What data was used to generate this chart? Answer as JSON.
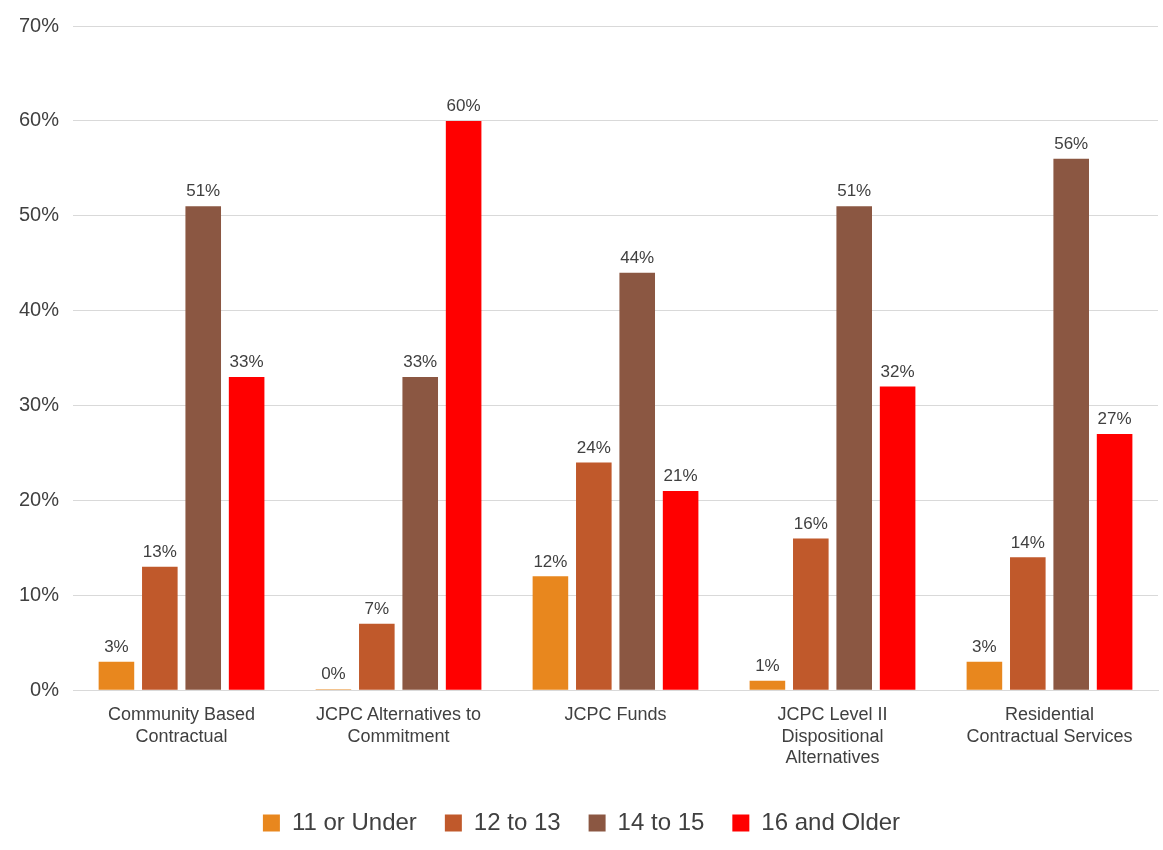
{
  "chart_data": {
    "type": "bar",
    "categories": [
      "Community Based Contractual",
      "JCPC Alternatives to Commitment",
      "JCPC Funds",
      "JCPC Level II Dispositional Alternatives",
      "Residential Contractual Services"
    ],
    "series": [
      {
        "name": "11 or Under",
        "color": "#e8871e",
        "values": [
          3,
          0,
          12,
          1,
          3
        ],
        "value_labels": [
          "3%",
          "0%",
          "12%",
          "1%",
          "3%"
        ]
      },
      {
        "name": "12 to 13",
        "color": "#c0592b",
        "values": [
          13,
          7,
          24,
          16,
          14
        ],
        "value_labels": [
          "13%",
          "7%",
          "24%",
          "16%",
          "14%"
        ]
      },
      {
        "name": "14 to 15",
        "color": "#8b5742",
        "values": [
          51,
          33,
          44,
          51,
          56
        ],
        "value_labels": [
          "51%",
          "33%",
          "44%",
          "51%",
          "56%"
        ]
      },
      {
        "name": "16 and Older",
        "color": "#ff0000",
        "values": [
          33,
          60,
          21,
          32,
          27
        ],
        "value_labels": [
          "33%",
          "60%",
          "21%",
          "32%",
          "27%"
        ]
      }
    ],
    "ylim": [
      0,
      70
    ],
    "yticks": [
      {
        "value": 0,
        "label": "0%"
      },
      {
        "value": 10,
        "label": "10%"
      },
      {
        "value": 20,
        "label": "20%"
      },
      {
        "value": 30,
        "label": "30%"
      },
      {
        "value": 40,
        "label": "40%"
      },
      {
        "value": 50,
        "label": "50%"
      },
      {
        "value": 60,
        "label": "60%"
      },
      {
        "value": 70,
        "label": "70%"
      }
    ],
    "grid": "y",
    "legend": "bottom"
  }
}
